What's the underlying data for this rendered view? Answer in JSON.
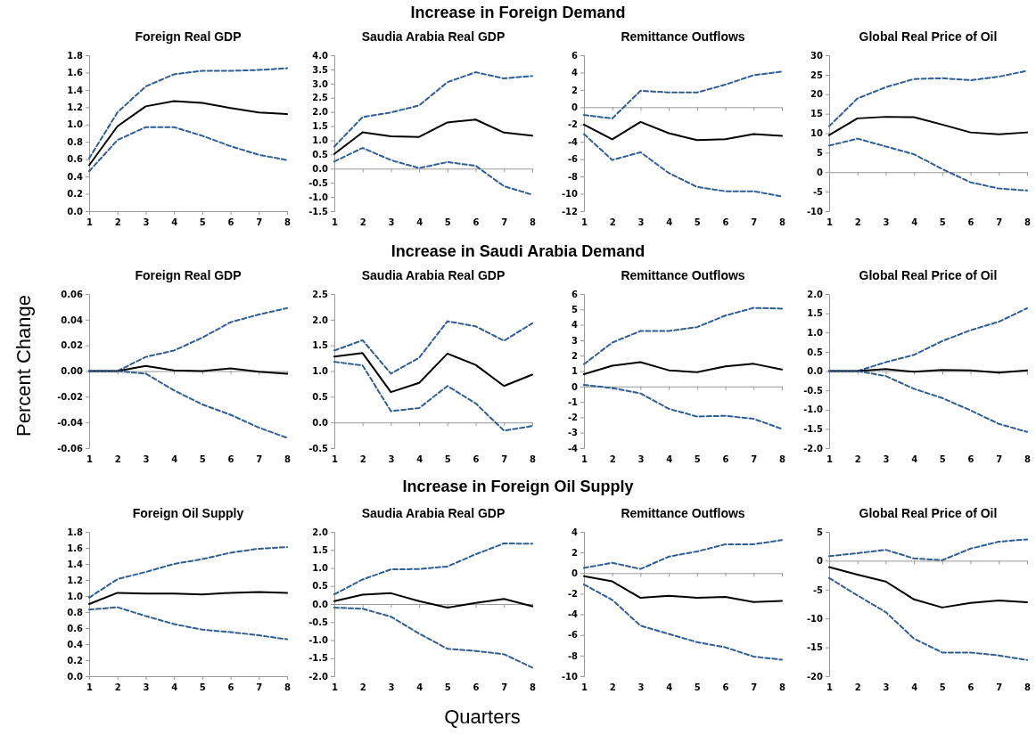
{
  "chart_data": [
    {
      "type": "line",
      "title": "Foreign Real GDP",
      "x": [
        1,
        2,
        3,
        4,
        5,
        6,
        7,
        8
      ],
      "xlim": [
        1,
        8
      ],
      "xticks": [
        1,
        2,
        3,
        4,
        5,
        6,
        7,
        8
      ],
      "ylim": [
        0,
        1.8
      ],
      "yticks": [
        {
          "value": 0,
          "label": "0.0"
        },
        0.2,
        0.4,
        0.6,
        0.8,
        {
          "value": 1,
          "label": "1.0"
        },
        1.2,
        1.4,
        1.6,
        1.8
      ],
      "series": [
        {
          "color": "#2f5d95",
          "line_style": "dashed",
          "values": [
            0.61,
            1.14,
            1.44,
            1.58,
            1.62,
            1.62,
            1.63,
            1.65
          ]
        },
        {
          "color": "#000000",
          "line_style": "solid",
          "values": [
            0.53,
            0.98,
            1.21,
            1.27,
            1.25,
            1.19,
            1.14,
            1.12
          ]
        },
        {
          "color": "#2f5d95",
          "line_style": "dashed",
          "values": [
            0.46,
            0.82,
            0.97,
            0.97,
            0.87,
            0.75,
            0.65,
            0.59
          ]
        }
      ]
    },
    {
      "type": "line",
      "subtitle": "Increase in Foreign Demand",
      "title": "Saudia Arabia Real GDP",
      "x": [
        1,
        2,
        3,
        4,
        5,
        6,
        7,
        8
      ],
      "xlim": [
        1,
        8
      ],
      "xticks": [
        1,
        2,
        3,
        4,
        5,
        6,
        7,
        8
      ],
      "ylim": [
        -1.5,
        4
      ],
      "yticks": [
        -1.5,
        {
          "value": -1,
          "label": "-1.0"
        },
        -0.5,
        {
          "value": 0,
          "label": "0.0"
        },
        0.5,
        {
          "value": 1,
          "label": "1.0"
        },
        1.5,
        {
          "value": 2,
          "label": "2.0"
        },
        2.5,
        {
          "value": 3,
          "label": "3.0"
        },
        3.5,
        {
          "value": 4,
          "label": "4.0"
        }
      ],
      "series": [
        {
          "color": "#2f5d95",
          "line_style": "dashed",
          "values": [
            0.78,
            1.82,
            1.98,
            2.23,
            3.05,
            3.4,
            3.18,
            3.27
          ]
        },
        {
          "color": "#000000",
          "line_style": "solid",
          "values": [
            0.52,
            1.28,
            1.14,
            1.12,
            1.63,
            1.73,
            1.27,
            1.16
          ]
        },
        {
          "color": "#2f5d95",
          "line_style": "dashed",
          "values": [
            0.25,
            0.73,
            0.3,
            0.02,
            0.23,
            0.1,
            -0.62,
            -0.92
          ]
        }
      ]
    },
    {
      "type": "line",
      "title": "Remittance Outflows",
      "x": [
        1,
        2,
        3,
        4,
        5,
        6,
        7,
        8
      ],
      "xlim": [
        1,
        8
      ],
      "xticks": [
        1,
        2,
        3,
        4,
        5,
        6,
        7,
        8
      ],
      "ylim": [
        -12,
        6
      ],
      "yticks": [
        -12,
        -10,
        -8,
        -6,
        -4,
        -2,
        0,
        2,
        4,
        6
      ],
      "series": [
        {
          "color": "#2f5d95",
          "line_style": "dashed",
          "values": [
            -0.9,
            -1.3,
            1.9,
            1.7,
            1.7,
            2.6,
            3.7,
            4.1
          ]
        },
        {
          "color": "#000000",
          "line_style": "solid",
          "values": [
            -2.0,
            -3.7,
            -1.7,
            -3.0,
            -3.8,
            -3.7,
            -3.1,
            -3.3
          ]
        },
        {
          "color": "#2f5d95",
          "line_style": "dashed",
          "values": [
            -3.1,
            -6.1,
            -5.2,
            -7.6,
            -9.2,
            -9.7,
            -9.7,
            -10.3
          ]
        }
      ]
    },
    {
      "type": "line",
      "title": "Global Real Price of Oil",
      "x": [
        1,
        2,
        3,
        4,
        5,
        6,
        7,
        8
      ],
      "xlim": [
        1,
        8
      ],
      "xticks": [
        1,
        2,
        3,
        4,
        5,
        6,
        7,
        8
      ],
      "ylim": [
        -10,
        30
      ],
      "yticks": [
        -10,
        -5,
        0,
        5,
        10,
        15,
        20,
        25,
        30
      ],
      "series": [
        {
          "color": "#2f5d95",
          "line_style": "dashed",
          "values": [
            11.8,
            18.9,
            21.8,
            23.9,
            24.1,
            23.6,
            24.5,
            26.0
          ]
        },
        {
          "color": "#000000",
          "line_style": "solid",
          "values": [
            9.5,
            13.8,
            14.2,
            14.1,
            12.2,
            10.2,
            9.7,
            10.2
          ]
        },
        {
          "color": "#2f5d95",
          "line_style": "dashed",
          "values": [
            6.8,
            8.6,
            6.6,
            4.6,
            0.8,
            -2.6,
            -4.2,
            -4.7
          ]
        }
      ]
    },
    {
      "type": "line",
      "ylabel": "Percent Change",
      "title": "Foreign Real GDP",
      "x": [
        1,
        2,
        3,
        4,
        5,
        6,
        7,
        8
      ],
      "xlim": [
        1,
        8
      ],
      "xticks": [
        1,
        2,
        3,
        4,
        5,
        6,
        7,
        8
      ],
      "ylim": [
        -0.06,
        0.06
      ],
      "yticks": [
        -0.06,
        -0.04,
        -0.02,
        {
          "value": 0,
          "label": "0.00"
        },
        0.02,
        0.04,
        0.06
      ],
      "series": [
        {
          "color": "#2f5d95",
          "line_style": "dashed",
          "values": [
            0,
            0,
            0.011,
            0.016,
            0.026,
            0.038,
            0.044,
            0.049
          ]
        },
        {
          "color": "#000000",
          "line_style": "solid",
          "values": [
            0,
            0,
            0.004,
            0.0005,
            0,
            0.002,
            -0.0005,
            -0.002
          ]
        },
        {
          "color": "#2f5d95",
          "line_style": "dashed",
          "values": [
            0,
            0,
            -0.002,
            -0.015,
            -0.026,
            -0.034,
            -0.044,
            -0.052
          ]
        }
      ]
    },
    {
      "type": "line",
      "subtitle": "Increase in Saudi Arabia Demand",
      "title": "Saudia Arabia Real GDP",
      "x": [
        1,
        2,
        3,
        4,
        5,
        6,
        7,
        8
      ],
      "xlim": [
        1,
        8
      ],
      "xticks": [
        1,
        2,
        3,
        4,
        5,
        6,
        7,
        8
      ],
      "ylim": [
        -0.5,
        2.5
      ],
      "yticks": [
        -0.5,
        {
          "value": 0,
          "label": "0.0"
        },
        0.5,
        {
          "value": 1,
          "label": "1.0"
        },
        1.5,
        {
          "value": 2,
          "label": "2.0"
        },
        2.5
      ],
      "series": [
        {
          "color": "#2f5d95",
          "line_style": "dashed",
          "values": [
            1.4,
            1.6,
            0.95,
            1.26,
            1.97,
            1.87,
            1.59,
            1.93
          ]
        },
        {
          "color": "#000000",
          "line_style": "solid",
          "values": [
            1.28,
            1.35,
            0.59,
            0.77,
            1.34,
            1.12,
            0.71,
            0.93
          ]
        },
        {
          "color": "#2f5d95",
          "line_style": "dashed",
          "values": [
            1.18,
            1.11,
            0.22,
            0.28,
            0.71,
            0.37,
            -0.16,
            -0.07
          ]
        }
      ]
    },
    {
      "type": "line",
      "title": "Remittance Outflows",
      "x": [
        1,
        2,
        3,
        4,
        5,
        6,
        7,
        8
      ],
      "xlim": [
        1,
        8
      ],
      "xticks": [
        1,
        2,
        3,
        4,
        5,
        6,
        7,
        8
      ],
      "ylim": [
        -4,
        6
      ],
      "yticks": [
        -4,
        -3,
        -2,
        -1,
        0,
        1,
        2,
        3,
        4,
        5,
        6
      ],
      "series": [
        {
          "color": "#2f5d95",
          "line_style": "dashed",
          "values": [
            1.45,
            2.85,
            3.6,
            3.6,
            3.85,
            4.6,
            5.1,
            5.05
          ]
        },
        {
          "color": "#000000",
          "line_style": "solid",
          "values": [
            0.8,
            1.35,
            1.58,
            1.05,
            0.93,
            1.3,
            1.47,
            1.1
          ]
        },
        {
          "color": "#2f5d95",
          "line_style": "dashed",
          "values": [
            0.1,
            -0.1,
            -0.45,
            -1.45,
            -1.95,
            -1.9,
            -2.1,
            -2.75
          ]
        }
      ]
    },
    {
      "type": "line",
      "title": "Global Real Price of Oil",
      "x": [
        1,
        2,
        3,
        4,
        5,
        6,
        7,
        8
      ],
      "xlim": [
        1,
        8
      ],
      "xticks": [
        1,
        2,
        3,
        4,
        5,
        6,
        7,
        8
      ],
      "ylim": [
        -2,
        2
      ],
      "yticks": [
        {
          "value": -2,
          "label": "-2.0"
        },
        -1.5,
        {
          "value": -1,
          "label": "-1.0"
        },
        -0.5,
        {
          "value": 0,
          "label": "0.0"
        },
        0.5,
        {
          "value": 1,
          "label": "1.0"
        },
        1.5,
        {
          "value": 2,
          "label": "2.0"
        }
      ],
      "series": [
        {
          "color": "#2f5d95",
          "line_style": "dashed",
          "values": [
            0,
            0,
            0.23,
            0.42,
            0.78,
            1.06,
            1.28,
            1.63
          ]
        },
        {
          "color": "#000000",
          "line_style": "solid",
          "values": [
            0,
            0,
            0.05,
            -0.02,
            0.03,
            0.02,
            -0.04,
            0.02
          ]
        },
        {
          "color": "#2f5d95",
          "line_style": "dashed",
          "values": [
            0,
            0,
            -0.13,
            -0.46,
            -0.7,
            -1.02,
            -1.37,
            -1.58
          ]
        }
      ]
    },
    {
      "type": "line",
      "title": "Foreign Oil Supply",
      "x": [
        1,
        2,
        3,
        4,
        5,
        6,
        7,
        8
      ],
      "xlim": [
        1,
        8
      ],
      "xticks": [
        1,
        2,
        3,
        4,
        5,
        6,
        7,
        8
      ],
      "ylim": [
        0,
        1.8
      ],
      "yticks": [
        {
          "value": 0,
          "label": "0.0"
        },
        0.2,
        0.4,
        0.6,
        0.8,
        {
          "value": 1,
          "label": "1.0"
        },
        1.2,
        1.4,
        1.6,
        1.8
      ],
      "series": [
        {
          "color": "#2f5d95",
          "line_style": "dashed",
          "values": [
            0.98,
            1.21,
            1.3,
            1.4,
            1.46,
            1.54,
            1.59,
            1.61
          ]
        },
        {
          "color": "#000000",
          "line_style": "solid",
          "values": [
            0.9,
            1.04,
            1.03,
            1.03,
            1.02,
            1.04,
            1.05,
            1.04
          ]
        },
        {
          "color": "#2f5d95",
          "line_style": "dashed",
          "values": [
            0.83,
            0.86,
            0.75,
            0.65,
            0.58,
            0.55,
            0.51,
            0.46
          ]
        }
      ]
    },
    {
      "type": "line",
      "subtitle": "Increase in Foreign Oil Supply",
      "xlabel": "Quarters",
      "title": "Saudia Arabia Real GDP",
      "x": [
        1,
        2,
        3,
        4,
        5,
        6,
        7,
        8
      ],
      "xlim": [
        1,
        8
      ],
      "xticks": [
        1,
        2,
        3,
        4,
        5,
        6,
        7,
        8
      ],
      "ylim": [
        -2,
        2
      ],
      "yticks": [
        {
          "value": -2,
          "label": "-2.0"
        },
        -1.5,
        {
          "value": -1,
          "label": "-1.0"
        },
        -0.5,
        {
          "value": 0,
          "label": "0.0"
        },
        0.5,
        {
          "value": 1,
          "label": "1.0"
        },
        1.5,
        {
          "value": 2,
          "label": "2.0"
        }
      ],
      "series": [
        {
          "color": "#2f5d95",
          "line_style": "dashed",
          "values": [
            0.27,
            0.68,
            0.96,
            0.97,
            1.04,
            1.38,
            1.68,
            1.67
          ]
        },
        {
          "color": "#000000",
          "line_style": "solid",
          "values": [
            0.08,
            0.26,
            0.3,
            0.08,
            -0.1,
            0.03,
            0.14,
            -0.06
          ]
        },
        {
          "color": "#2f5d95",
          "line_style": "dashed",
          "values": [
            -0.1,
            -0.13,
            -0.35,
            -0.82,
            -1.24,
            -1.3,
            -1.39,
            -1.76
          ]
        }
      ]
    },
    {
      "type": "line",
      "title": "Remittance Outflows",
      "x": [
        1,
        2,
        3,
        4,
        5,
        6,
        7,
        8
      ],
      "xlim": [
        1,
        8
      ],
      "xticks": [
        1,
        2,
        3,
        4,
        5,
        6,
        7,
        8
      ],
      "ylim": [
        -10,
        4
      ],
      "yticks": [
        -10,
        -8,
        -6,
        -4,
        -2,
        0,
        2,
        4
      ],
      "series": [
        {
          "color": "#2f5d95",
          "line_style": "dashed",
          "values": [
            0.5,
            1.0,
            0.4,
            1.6,
            2.1,
            2.8,
            2.8,
            3.2
          ]
        },
        {
          "color": "#000000",
          "line_style": "solid",
          "values": [
            -0.3,
            -0.8,
            -2.4,
            -2.2,
            -2.4,
            -2.3,
            -2.8,
            -2.7
          ]
        },
        {
          "color": "#2f5d95",
          "line_style": "dashed",
          "values": [
            -1.1,
            -2.6,
            -5.1,
            -5.9,
            -6.7,
            -7.2,
            -8.1,
            -8.4
          ]
        }
      ]
    },
    {
      "type": "line",
      "title": "Global Real Price of Oil",
      "x": [
        1,
        2,
        3,
        4,
        5,
        6,
        7,
        8
      ],
      "xlim": [
        1,
        8
      ],
      "xticks": [
        1,
        2,
        3,
        4,
        5,
        6,
        7,
        8
      ],
      "ylim": [
        -20,
        5
      ],
      "yticks": [
        -20,
        -15,
        -10,
        -5,
        0,
        5
      ],
      "series": [
        {
          "color": "#2f5d95",
          "line_style": "dashed",
          "values": [
            0.8,
            1.3,
            1.9,
            0.4,
            0.1,
            2.1,
            3.3,
            3.7
          ]
        },
        {
          "color": "#000000",
          "line_style": "solid",
          "values": [
            -1.1,
            -2.4,
            -3.6,
            -6.7,
            -8.1,
            -7.3,
            -6.9,
            -7.2
          ]
        },
        {
          "color": "#2f5d95",
          "line_style": "dashed",
          "values": [
            -3.0,
            -6.0,
            -8.9,
            -13.5,
            -15.9,
            -15.9,
            -16.4,
            -17.2
          ]
        }
      ]
    }
  ]
}
